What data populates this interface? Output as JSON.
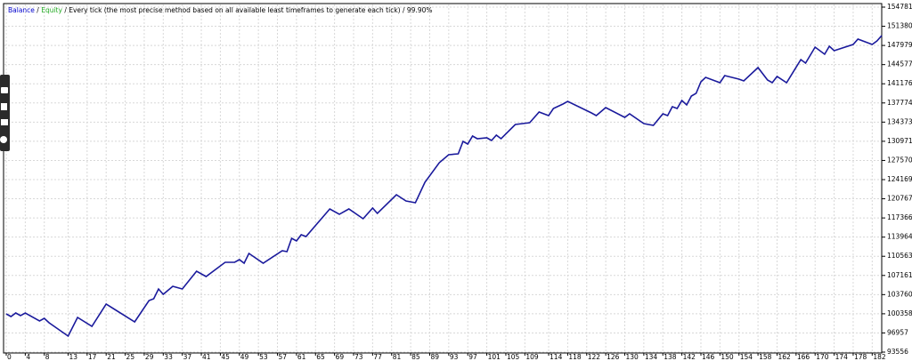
{
  "chart_data": {
    "type": "line",
    "legend": {
      "balance": "Balance",
      "sep1": " / ",
      "equity": "Equity",
      "rest": " / Every tick (the most precise method based on all available least timeframes to generate each tick) / 99.90%"
    },
    "legend_colors": {
      "balance": "#0000cc",
      "equity": "#22aa22",
      "rest": "#000000"
    },
    "series": [
      {
        "name": "Balance",
        "color": "#1a1a9c",
        "x": [
          0,
          1,
          2,
          3,
          4,
          7,
          8,
          9,
          13,
          15,
          18,
          21,
          27,
          30,
          31,
          32,
          33,
          35,
          37,
          40,
          42,
          46,
          48,
          49,
          50,
          51,
          54,
          58,
          59,
          60,
          61,
          62,
          63,
          68,
          70,
          72,
          75,
          77,
          78,
          82,
          84,
          86,
          88,
          91,
          93,
          95,
          96,
          97,
          98,
          99,
          101,
          102,
          103,
          104,
          107,
          110,
          112,
          114,
          115,
          117,
          118,
          123,
          124,
          126,
          130,
          131,
          134,
          136,
          138,
          139,
          140,
          141,
          142,
          143,
          144,
          145,
          146,
          147,
          150,
          151,
          154,
          155,
          158,
          160,
          161,
          162,
          164,
          167,
          168,
          170,
          172,
          173,
          174,
          178,
          179,
          182,
          183,
          184
        ],
        "values": [
          100340,
          99870,
          100500,
          100030,
          100500,
          99080,
          99550,
          98760,
          96400,
          99710,
          98130,
          102080,
          98920,
          102710,
          103020,
          104760,
          103810,
          105230,
          104760,
          107920,
          106970,
          109490,
          109490,
          109970,
          109340,
          111070,
          109340,
          111550,
          111390,
          113750,
          113280,
          114390,
          114070,
          118960,
          118010,
          118960,
          117230,
          119120,
          118170,
          121490,
          120380,
          120070,
          123700,
          127170,
          128590,
          128740,
          130960,
          130480,
          131900,
          131430,
          131590,
          131110,
          132060,
          131430,
          133950,
          134270,
          136160,
          135530,
          136790,
          137580,
          138060,
          136000,
          135530,
          136950,
          135220,
          135850,
          134110,
          133790,
          135850,
          135530,
          137110,
          136790,
          138210,
          137420,
          139000,
          139470,
          141530,
          142320,
          141370,
          142630,
          142000,
          141690,
          144050,
          141840,
          141370,
          142470,
          141370,
          145470,
          144840,
          147680,
          146420,
          147840,
          147050,
          148160,
          149100,
          148160,
          148790,
          149730
        ]
      }
    ],
    "xlim": [
      0,
      184
    ],
    "xticks": [
      0,
      4,
      8,
      13,
      17,
      21,
      25,
      29,
      33,
      37,
      41,
      45,
      49,
      53,
      57,
      61,
      65,
      69,
      73,
      77,
      81,
      85,
      89,
      93,
      97,
      101,
      105,
      109,
      114,
      118,
      122,
      126,
      130,
      134,
      138,
      142,
      146,
      150,
      154,
      158,
      162,
      166,
      170,
      174,
      178,
      182
    ],
    "ylim": [
      93556,
      154781
    ],
    "yticks": [
      93556,
      96957,
      100358,
      103760,
      107161,
      110563,
      113964,
      117366,
      120767,
      124169,
      127570,
      130971,
      134373,
      137774,
      141176,
      144577,
      147979,
      151380,
      154781
    ],
    "grid": true
  }
}
